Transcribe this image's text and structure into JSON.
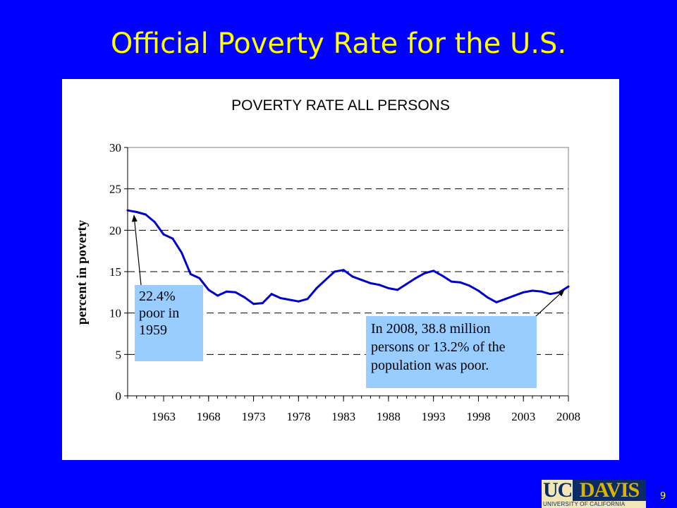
{
  "slide": {
    "title": "Official Poverty Rate for the U.S.",
    "page_number": "9",
    "logo": {
      "uc": "UC",
      "davis": "DAVIS",
      "subtitle": "UNIVERSITY OF CALIFORNIA"
    }
  },
  "colors": {
    "background": "#0000ff",
    "title": "#ffff00",
    "line": "#0000cc",
    "annotation_fill": "#99ccff"
  },
  "chart_data": {
    "type": "line",
    "title": "POVERTY RATE ALL PERSONS",
    "xlabel": "",
    "ylabel": "percent in poverty",
    "xlim": [
      1959,
      2008
    ],
    "ylim": [
      0,
      30
    ],
    "yticks": [
      0,
      5,
      10,
      15,
      20,
      25,
      30
    ],
    "xticks": [
      1963,
      1968,
      1973,
      1978,
      1983,
      1988,
      1993,
      1998,
      2003,
      2008
    ],
    "grid": "horizontal-dashed",
    "series": [
      {
        "x": [
          1959,
          1960,
          1961,
          1962,
          1963,
          1964,
          1965,
          1966,
          1967,
          1968,
          1969,
          1970,
          1971,
          1972,
          1973,
          1974,
          1975,
          1976,
          1977,
          1978,
          1979,
          1980,
          1981,
          1982,
          1983,
          1984,
          1985,
          1986,
          1987,
          1988,
          1989,
          1990,
          1991,
          1992,
          1993,
          1994,
          1995,
          1996,
          1997,
          1998,
          1999,
          2000,
          2001,
          2002,
          2003,
          2004,
          2005,
          2006,
          2007,
          2008
        ],
        "values": [
          22.4,
          22.2,
          21.9,
          21.0,
          19.5,
          19.0,
          17.3,
          14.7,
          14.2,
          12.8,
          12.1,
          12.6,
          12.5,
          11.9,
          11.1,
          11.2,
          12.3,
          11.8,
          11.6,
          11.4,
          11.7,
          13.0,
          14.0,
          15.0,
          15.2,
          14.4,
          14.0,
          13.6,
          13.4,
          13.0,
          12.8,
          13.5,
          14.2,
          14.8,
          15.1,
          14.5,
          13.8,
          13.7,
          13.3,
          12.7,
          11.9,
          11.3,
          11.7,
          12.1,
          12.5,
          12.7,
          12.6,
          12.3,
          12.5,
          13.2
        ]
      }
    ],
    "annotations": [
      {
        "name": "annotation-1959",
        "text": "22.4%\npoor in\n1959",
        "point": [
          1959,
          22.4
        ]
      },
      {
        "name": "annotation-2008",
        "text": "In 2008, 38.8 million\npersons or 13.2% of the\npopulation was poor.",
        "point": [
          2008,
          13.2
        ]
      }
    ]
  }
}
